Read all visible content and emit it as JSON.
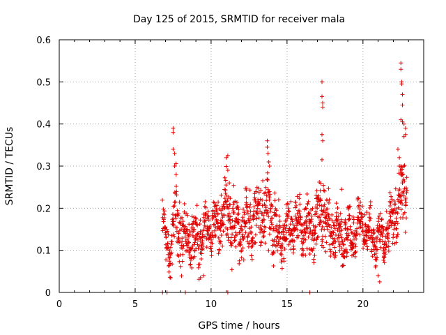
{
  "colors": {
    "series": "#e00000",
    "grid": "#a0a0a0",
    "axis": "#000000"
  },
  "chart_data": {
    "type": "scatter",
    "title": "Day 125 of 2015, SRMTID for receiver mala",
    "xlabel": "GPS time / hours",
    "ylabel": "SRMTID / TECUs",
    "xlim": [
      0,
      24
    ],
    "ylim": [
      0,
      0.6
    ],
    "x_ticks": [
      0,
      5,
      10,
      15,
      20
    ],
    "x_tick_labels": [
      "0",
      "5",
      "10",
      "15",
      "20"
    ],
    "y_ticks": [
      0,
      0.1,
      0.2,
      0.3,
      0.4,
      0.5,
      0.6
    ],
    "y_tick_labels": [
      "0",
      "0.1",
      "0.2",
      "0.3",
      "0.4",
      "0.5",
      "0.6"
    ],
    "grid": true,
    "marker": "plus",
    "series": [
      {
        "name": "SRMTID",
        "note": "approximate digitization of ~1500 plotted points",
        "envelope": [
          {
            "x": 6.8,
            "base": 0.13,
            "spread": 0.04
          },
          {
            "x": 7.3,
            "base": 0.11,
            "spread": 0.06
          },
          {
            "x": 7.7,
            "base": 0.18,
            "spread": 0.1
          },
          {
            "x": 8.3,
            "base": 0.13,
            "spread": 0.06
          },
          {
            "x": 9.2,
            "base": 0.12,
            "spread": 0.06
          },
          {
            "x": 9.7,
            "base": 0.15,
            "spread": 0.06
          },
          {
            "x": 10.4,
            "base": 0.16,
            "spread": 0.06
          },
          {
            "x": 11.0,
            "base": 0.2,
            "spread": 0.08
          },
          {
            "x": 11.7,
            "base": 0.15,
            "spread": 0.06
          },
          {
            "x": 12.6,
            "base": 0.16,
            "spread": 0.07
          },
          {
            "x": 13.7,
            "base": 0.2,
            "spread": 0.1
          },
          {
            "x": 14.5,
            "base": 0.13,
            "spread": 0.05
          },
          {
            "x": 15.5,
            "base": 0.17,
            "spread": 0.06
          },
          {
            "x": 16.5,
            "base": 0.14,
            "spread": 0.06
          },
          {
            "x": 17.2,
            "base": 0.2,
            "spread": 0.1
          },
          {
            "x": 18.0,
            "base": 0.14,
            "spread": 0.06
          },
          {
            "x": 19.2,
            "base": 0.14,
            "spread": 0.05
          },
          {
            "x": 19.9,
            "base": 0.17,
            "spread": 0.05
          },
          {
            "x": 20.8,
            "base": 0.12,
            "spread": 0.05
          },
          {
            "x": 21.6,
            "base": 0.13,
            "spread": 0.05
          },
          {
            "x": 22.2,
            "base": 0.2,
            "spread": 0.07
          },
          {
            "x": 22.9,
            "base": 0.25,
            "spread": 0.1
          }
        ],
        "points": [
          [
            7.5,
            0.39
          ],
          [
            7.5,
            0.38
          ],
          [
            7.6,
            0.33
          ],
          [
            7.6,
            0.3
          ],
          [
            7.7,
            0.28
          ],
          [
            7.5,
            0.34
          ],
          [
            11.0,
            0.32
          ],
          [
            11.1,
            0.325
          ],
          [
            11.1,
            0.29
          ],
          [
            11.2,
            0.26
          ],
          [
            13.7,
            0.36
          ],
          [
            13.7,
            0.345
          ],
          [
            13.75,
            0.33
          ],
          [
            13.8,
            0.31
          ],
          [
            13.85,
            0.3
          ],
          [
            17.3,
            0.5
          ],
          [
            17.3,
            0.465
          ],
          [
            17.35,
            0.45
          ],
          [
            17.35,
            0.44
          ],
          [
            17.3,
            0.375
          ],
          [
            17.35,
            0.36
          ],
          [
            17.3,
            0.315
          ],
          [
            22.5,
            0.545
          ],
          [
            22.5,
            0.53
          ],
          [
            22.55,
            0.5
          ],
          [
            22.55,
            0.495
          ],
          [
            22.6,
            0.47
          ],
          [
            22.6,
            0.445
          ],
          [
            22.5,
            0.41
          ],
          [
            22.6,
            0.405
          ],
          [
            22.7,
            0.4
          ],
          [
            22.7,
            0.37
          ],
          [
            22.8,
            0.39
          ],
          [
            22.8,
            0.375
          ],
          [
            22.3,
            0.34
          ],
          [
            22.4,
            0.32
          ],
          [
            22.4,
            0.3
          ],
          [
            22.5,
            0.28
          ],
          [
            22.6,
            0.26
          ],
          [
            6.8,
            0.0
          ],
          [
            7.1,
            0.0
          ],
          [
            8.3,
            0.0
          ],
          [
            11.1,
            0.0
          ],
          [
            16.5,
            0.0
          ],
          [
            18.6,
            0.245
          ],
          [
            9.3,
            0.035
          ],
          [
            9.5,
            0.04
          ],
          [
            21.1,
            0.025
          ],
          [
            21.0,
            0.04
          ]
        ]
      }
    ]
  }
}
